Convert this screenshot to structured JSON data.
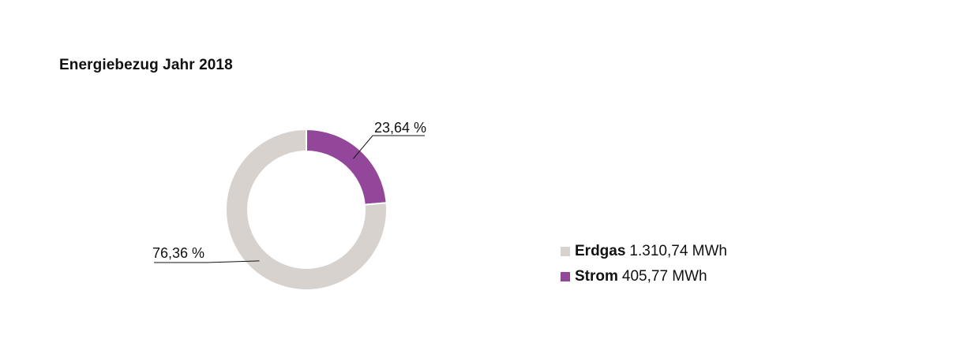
{
  "title": "Energiebezug Jahr 2018",
  "chart_data": {
    "type": "pie",
    "title": "Energiebezug Jahr 2018",
    "donut": true,
    "slices": [
      {
        "name": "Strom",
        "value": 405.77,
        "unit": "MWh",
        "percent": 23.64,
        "percent_label": "23,64 %",
        "value_label": "405,77 MWh",
        "color": "#93479a"
      },
      {
        "name": "Erdgas",
        "value": 1310.74,
        "unit": "MWh",
        "percent": 76.36,
        "percent_label": "76,36 %",
        "value_label": "1.310,74 MWh",
        "color": "#d8d2ce"
      }
    ]
  },
  "legend": {
    "placement": "right",
    "items": [
      {
        "name": "Erdgas",
        "value_label": "1.310,74 MWh",
        "color": "#d8d2ce"
      },
      {
        "name": "Strom",
        "value_label": "405,77 MWh",
        "color": "#93479a"
      }
    ]
  }
}
